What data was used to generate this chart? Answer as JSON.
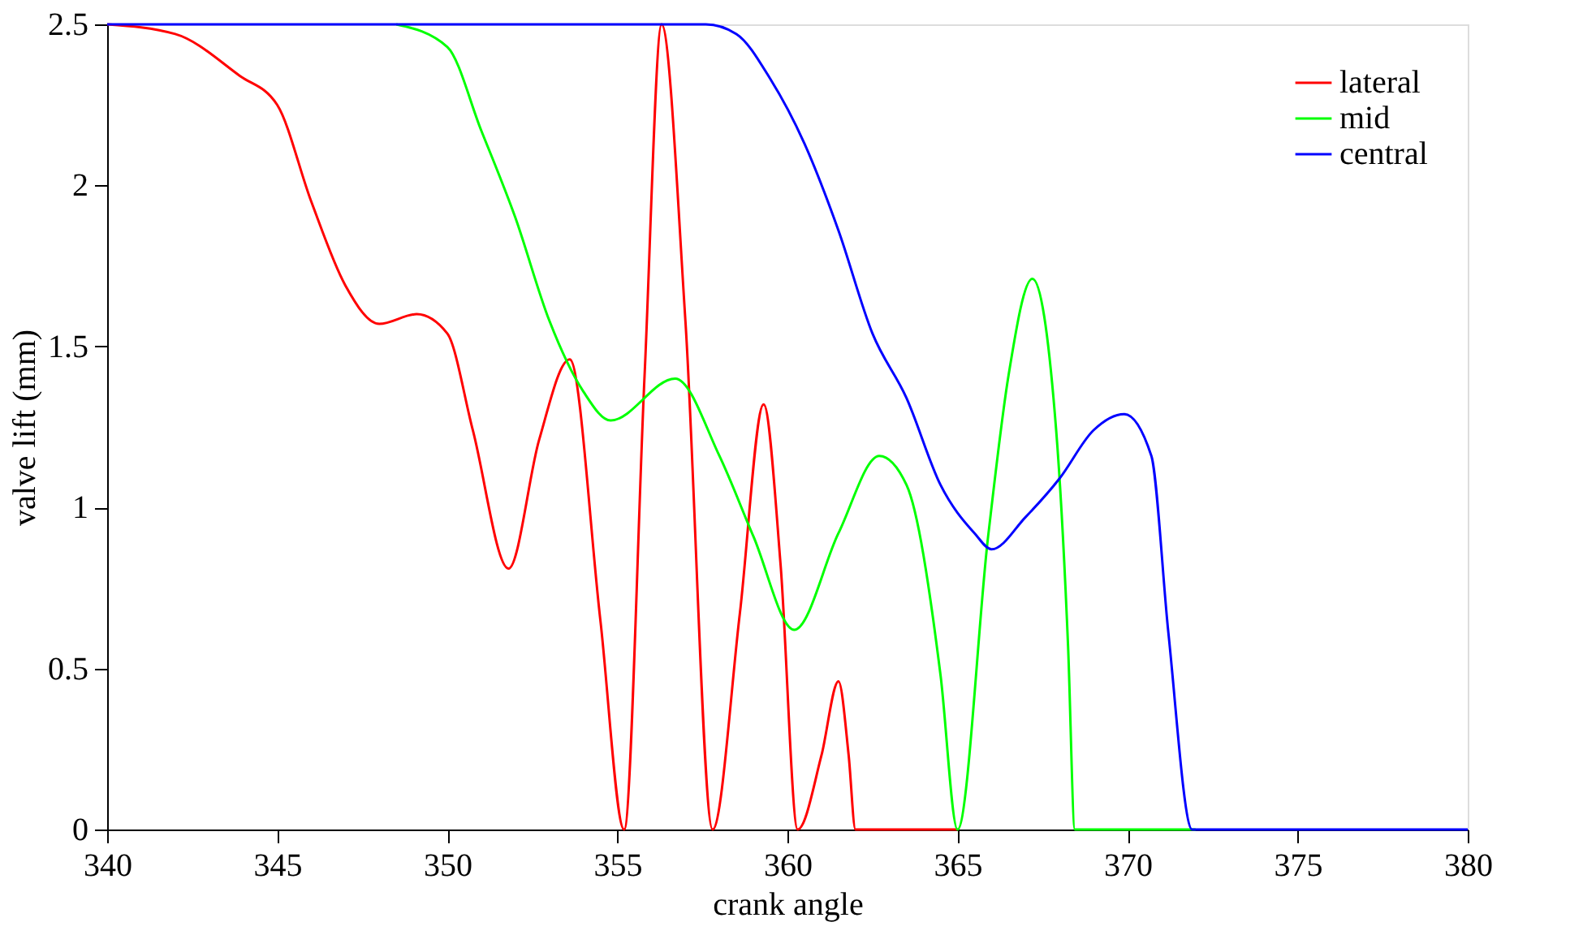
{
  "chart_data": {
    "type": "line",
    "xlabel": "crank angle",
    "ylabel": "valve lift (mm)",
    "xlim": [
      340,
      380
    ],
    "ylim": [
      0,
      2.5
    ],
    "xticks": [
      340,
      345,
      350,
      355,
      360,
      365,
      370,
      375,
      380
    ],
    "yticks": [
      0,
      0.5,
      1,
      1.5,
      2,
      2.5
    ],
    "grid": false,
    "legend": "top right",
    "marker": "none",
    "line_style": "solid",
    "series": [
      {
        "name": "lateral",
        "color": "#ff0000",
        "x": [
          340,
          342,
          343.9,
          345,
          346,
          347,
          348,
          349.1,
          350,
          350.75,
          351.8,
          352.7,
          353.6,
          354.5,
          355.2,
          355.8,
          356.3,
          357,
          357.8,
          358.6,
          359.3,
          359.8,
          360.3,
          361,
          361.5,
          361.8,
          362,
          365
        ],
        "values": [
          2.5,
          2.47,
          2.34,
          2.25,
          1.95,
          1.69,
          1.57,
          1.6,
          1.54,
          1.24,
          0.81,
          1.21,
          1.46,
          0.65,
          0,
          1.41,
          2.5,
          1.58,
          0,
          0.67,
          1.32,
          0.82,
          0,
          0.23,
          0.46,
          0.23,
          0,
          0
        ]
      },
      {
        "name": "mid",
        "color": "#00ff00",
        "x": [
          348.5,
          350,
          351,
          352,
          353,
          354,
          354.8,
          356.7,
          358,
          359,
          360.2,
          361.5,
          362.7,
          363.5,
          364.5,
          365,
          365.9,
          366.5,
          367.2,
          367.9,
          368.25,
          368.45,
          372
        ],
        "values": [
          2.5,
          2.43,
          2.17,
          1.9,
          1.58,
          1.36,
          1.27,
          1.4,
          1.16,
          0.91,
          0.62,
          0.92,
          1.16,
          1.07,
          0.48,
          0,
          0.91,
          1.41,
          1.71,
          1.24,
          0.57,
          0,
          0
        ]
      },
      {
        "name": "central",
        "color": "#0000ff",
        "x": [
          340,
          357.6,
          358.5,
          359.5,
          360.5,
          361.5,
          362.5,
          363.5,
          364.5,
          365.5,
          366,
          367,
          368,
          369,
          369.9,
          370.7,
          371.2,
          371.9,
          380
        ],
        "values": [
          2.5,
          2.5,
          2.47,
          2.33,
          2.13,
          1.86,
          1.54,
          1.34,
          1.07,
          0.92,
          0.87,
          0.97,
          1.09,
          1.24,
          1.29,
          1.16,
          0.61,
          0,
          0
        ]
      }
    ]
  }
}
